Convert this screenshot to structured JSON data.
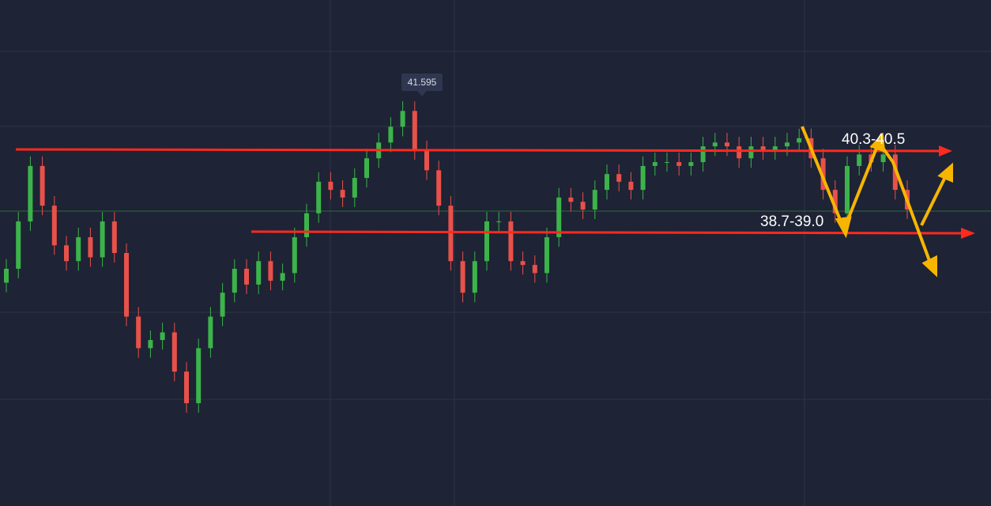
{
  "chart_data": {
    "type": "candlestick",
    "ylim": [
      33.13,
      43.71
    ],
    "up_color": "#3cb34a",
    "down_color": "#e8514a",
    "open": [
      37.8,
      38.09,
      39.08,
      40.24,
      39.41,
      38.58,
      38.25,
      38.75,
      38.33,
      39.08,
      38.42,
      37.09,
      36.43,
      36.6,
      36.76,
      35.94,
      35.28,
      36.43,
      37.09,
      37.59,
      38.09,
      37.76,
      38.25,
      37.84,
      38.0,
      38.75,
      39.25,
      39.91,
      39.74,
      39.58,
      39.99,
      40.4,
      40.73,
      41.06,
      41.39,
      40.57,
      40.15,
      39.41,
      38.25,
      37.59,
      38.25,
      39.08,
      39.08,
      38.25,
      38.17,
      38.0,
      38.75,
      39.58,
      39.49,
      39.33,
      39.74,
      40.07,
      39.91,
      39.74,
      40.24,
      40.32,
      40.32,
      40.24,
      40.32,
      40.65,
      40.73,
      40.65,
      40.4,
      40.65,
      40.57,
      40.65,
      40.73,
      40.82,
      40.4,
      39.74,
      39.25,
      40.24,
      40.48,
      40.32,
      40.48,
      39.74
    ],
    "high": [
      38.29,
      39.28,
      40.44,
      40.44,
      39.61,
      38.78,
      38.95,
      38.95,
      39.28,
      39.28,
      38.62,
      37.29,
      36.8,
      36.96,
      36.96,
      36.14,
      36.63,
      37.29,
      37.79,
      38.29,
      38.29,
      38.45,
      38.45,
      38.2,
      38.95,
      39.45,
      40.11,
      40.11,
      39.94,
      40.19,
      40.6,
      40.93,
      41.26,
      41.595,
      41.59,
      40.77,
      40.35,
      39.61,
      38.45,
      38.45,
      39.28,
      39.28,
      39.28,
      38.45,
      38.37,
      38.95,
      39.78,
      39.78,
      39.69,
      39.94,
      40.27,
      40.27,
      40.11,
      40.44,
      40.52,
      40.52,
      40.52,
      40.52,
      40.85,
      40.93,
      40.93,
      40.85,
      40.85,
      40.85,
      40.85,
      40.93,
      41.02,
      41.02,
      40.6,
      39.94,
      40.44,
      40.68,
      40.68,
      40.68,
      40.68,
      39.94
    ],
    "low": [
      37.6,
      37.89,
      38.88,
      39.21,
      38.38,
      38.05,
      38.05,
      38.13,
      38.13,
      38.22,
      36.89,
      36.23,
      36.23,
      36.4,
      35.74,
      35.08,
      35.08,
      36.23,
      36.89,
      37.39,
      37.56,
      37.56,
      37.64,
      37.64,
      37.8,
      38.55,
      39.05,
      39.54,
      39.38,
      39.38,
      39.79,
      40.2,
      40.53,
      40.86,
      40.37,
      39.95,
      39.21,
      38.05,
      37.39,
      37.39,
      38.05,
      38.88,
      38.05,
      37.97,
      37.8,
      37.8,
      38.55,
      39.29,
      39.13,
      39.13,
      39.54,
      39.71,
      39.54,
      39.54,
      40.04,
      40.12,
      40.04,
      40.04,
      40.12,
      40.45,
      40.45,
      40.2,
      40.2,
      40.37,
      40.37,
      40.45,
      40.53,
      40.2,
      39.54,
      39.05,
      39.05,
      40.04,
      40.12,
      40.12,
      39.54,
      39.13
    ],
    "close": [
      38.09,
      39.08,
      40.24,
      39.41,
      38.58,
      38.25,
      38.75,
      38.33,
      39.08,
      38.42,
      37.09,
      36.43,
      36.6,
      36.76,
      35.94,
      35.28,
      36.43,
      37.09,
      37.59,
      38.09,
      37.76,
      38.25,
      37.84,
      38.0,
      38.75,
      39.25,
      39.91,
      39.74,
      39.58,
      39.99,
      40.4,
      40.73,
      41.06,
      41.39,
      40.57,
      40.15,
      39.41,
      38.25,
      37.59,
      38.25,
      39.08,
      39.08,
      38.25,
      38.17,
      38.0,
      38.75,
      39.58,
      39.49,
      39.33,
      39.74,
      40.07,
      39.91,
      39.74,
      40.24,
      40.32,
      40.32,
      40.24,
      40.32,
      40.65,
      40.73,
      40.65,
      40.4,
      40.65,
      40.57,
      40.65,
      40.73,
      40.82,
      40.4,
      39.74,
      39.25,
      40.24,
      40.48,
      40.32,
      40.48,
      39.74,
      39.33
    ],
    "annotations": [
      "40.3-40.5",
      "38.7-39.0"
    ]
  }
}
